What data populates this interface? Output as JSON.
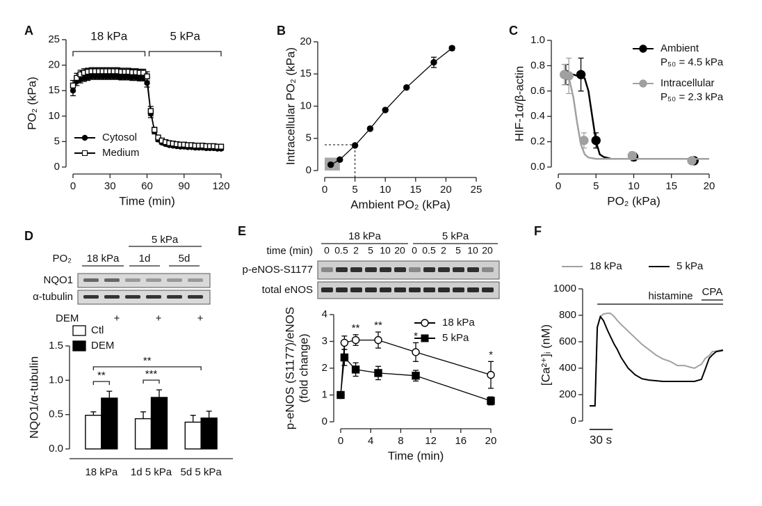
{
  "chart_data": [
    {
      "panel": "A",
      "type": "line",
      "xlabel": "Time (min)",
      "ylabel": "PO₂ (kPa)",
      "xlim": [
        0,
        120
      ],
      "xticks": [
        0,
        30,
        60,
        90,
        120
      ],
      "ylim": [
        0,
        25
      ],
      "yticks": [
        0,
        5,
        10,
        15,
        20,
        25
      ],
      "phases": [
        {
          "label": "18 kPa",
          "x": [
            0,
            60
          ]
        },
        {
          "label": "5 kPa",
          "x": [
            60,
            120
          ]
        }
      ],
      "legend": "lower left",
      "x": [
        0,
        3,
        6,
        9,
        12,
        15,
        18,
        21,
        24,
        27,
        30,
        33,
        36,
        39,
        42,
        45,
        48,
        51,
        54,
        57,
        60,
        63,
        66,
        69,
        72,
        75,
        78,
        81,
        84,
        87,
        90,
        93,
        96,
        99,
        102,
        105,
        108,
        111,
        114,
        117,
        120
      ],
      "series": [
        {
          "name": "Cytosol",
          "color": "#000000",
          "marker": "circle",
          "filled": true,
          "values": [
            15,
            16.8,
            17.2,
            17.5,
            17.6,
            17.8,
            17.8,
            17.8,
            17.8,
            17.8,
            17.8,
            17.8,
            17.8,
            17.7,
            17.7,
            17.7,
            17.6,
            17.6,
            17.5,
            17.5,
            16.5,
            10.5,
            7,
            5.4,
            4.8,
            4.5,
            4.3,
            4.2,
            4.1,
            4,
            4,
            3.9,
            3.9,
            3.8,
            3.8,
            3.8,
            3.7,
            3.7,
            3.7,
            3.6,
            3.6
          ],
          "errors": [
            1,
            0.8,
            0.7,
            0.7,
            0.6,
            0.6,
            0.6,
            0.6,
            0.6,
            0.6,
            0.6,
            0.6,
            0.6,
            0.6,
            0.6,
            0.6,
            0.6,
            0.6,
            0.6,
            0.6,
            0.8,
            0.8,
            0.5,
            0.4,
            0.3,
            0.3,
            0.3,
            0.3,
            0.3,
            0.3,
            0.3,
            0.3,
            0.3,
            0.3,
            0.3,
            0.3,
            0.3,
            0.3,
            0.3,
            0.3,
            0.3
          ]
        },
        {
          "name": "Medium",
          "color": "#000000",
          "marker": "square",
          "filled": false,
          "values": [
            16,
            17.5,
            18.2,
            18.5,
            18.7,
            18.8,
            18.8,
            18.8,
            18.8,
            18.8,
            18.8,
            18.8,
            18.8,
            18.7,
            18.7,
            18.7,
            18.6,
            18.6,
            18.5,
            18.5,
            17.8,
            11,
            7.3,
            5.8,
            5.2,
            4.9,
            4.7,
            4.6,
            4.5,
            4.4,
            4.4,
            4.3,
            4.3,
            4.2,
            4.2,
            4.2,
            4.1,
            4.1,
            4.1,
            4,
            4
          ],
          "errors": [
            1,
            0.9,
            0.8,
            0.8,
            0.7,
            0.7,
            0.7,
            0.7,
            0.7,
            0.7,
            0.7,
            0.7,
            0.7,
            0.7,
            0.7,
            0.7,
            0.7,
            0.7,
            0.7,
            0.7,
            0.9,
            0.9,
            0.5,
            0.4,
            0.3,
            0.3,
            0.3,
            0.3,
            0.3,
            0.3,
            0.3,
            0.3,
            0.3,
            0.3,
            0.3,
            0.3,
            0.3,
            0.3,
            0.3,
            0.3,
            0.3
          ]
        }
      ]
    },
    {
      "panel": "B",
      "type": "line",
      "xlabel": "Ambient PO₂ (kPa)",
      "ylabel": "Intracellular PO₂ (kPa)",
      "xlim": [
        0,
        25
      ],
      "xticks": [
        0,
        5,
        10,
        15,
        20,
        25
      ],
      "ylim": [
        0,
        20
      ],
      "yticks": [
        0,
        5,
        10,
        15,
        20
      ],
      "guide": {
        "x": 5,
        "y": 4
      },
      "shade": {
        "x": [
          0,
          2.5
        ],
        "y": [
          0,
          2
        ]
      },
      "x": [
        1,
        2.5,
        5,
        7.5,
        10,
        13.5,
        18,
        21
      ],
      "series": [
        {
          "color": "#000000",
          "marker": "circle",
          "filled": true,
          "values": [
            0.9,
            1.7,
            3.9,
            6.5,
            9.4,
            12.9,
            16.8,
            19
          ],
          "errors": [
            0.2,
            0.2,
            0.2,
            0.2,
            0.2,
            0.2,
            0.8,
            0.3
          ]
        }
      ]
    },
    {
      "panel": "C",
      "type": "scatter",
      "xlabel": "PO₂ (kPa)",
      "ylabel": "HIF-1α/β-actin",
      "xlim": [
        0,
        20
      ],
      "xticks": [
        0,
        5,
        10,
        15,
        20
      ],
      "ylim": [
        0,
        1
      ],
      "yticks": [
        {
          "value": 0,
          "label": "0.0"
        },
        0.2,
        0.4,
        0.6,
        0.8,
        {
          "value": 1,
          "label": "1.0"
        }
      ],
      "legend": "upper right",
      "series": [
        {
          "name": "Ambient",
          "fit_label": "P₅₀ = 4.5 kPa",
          "color": "#000000",
          "marker": "circle",
          "filled": true,
          "x": [
            1,
            3,
            5,
            10,
            18
          ],
          "values": [
            0.73,
            0.73,
            0.21,
            0.08,
            0.05
          ],
          "errors": [
            0.08,
            0.13,
            0.06,
            0.03,
            0.01
          ],
          "fit": {
            "x": [
              0.5,
              2,
              3.5,
              4,
              4.5,
              5,
              5.5,
              6,
              7,
              10,
              20
            ],
            "y": [
              0.73,
              0.73,
              0.7,
              0.6,
              0.4,
              0.2,
              0.1,
              0.08,
              0.065,
              0.065,
              0.065
            ]
          }
        },
        {
          "name": "Intracellular",
          "fit_label": "P₅₀ = 2.3 kPa",
          "color": "#a0a0a0",
          "marker": "circle",
          "filled": true,
          "x": [
            0.8,
            1.4,
            3.4,
            9.8,
            17.7
          ],
          "values": [
            0.73,
            0.72,
            0.21,
            0.09,
            0.05
          ],
          "errors": [
            0.08,
            0.14,
            0.06,
            0.03,
            0.01
          ],
          "fit": {
            "x": [
              0.5,
              1,
              1.5,
              2,
              2.5,
              3,
              3.5,
              4,
              5,
              10,
              20
            ],
            "y": [
              0.73,
              0.72,
              0.68,
              0.55,
              0.35,
              0.18,
              0.1,
              0.075,
              0.065,
              0.065,
              0.065
            ]
          }
        }
      ]
    },
    {
      "panel": "D",
      "type": "bar",
      "ylabel": "NQO1/α-tubulin",
      "ylim": [
        0,
        1.5
      ],
      "yticks": [
        {
          "value": 0,
          "label": "0.0"
        },
        0.5,
        {
          "value": 1,
          "label": "1.0"
        },
        1.5
      ],
      "categories": [
        "18 kPa",
        "1d 5 kPa",
        "5d 5 kPa"
      ],
      "legend": "upper left",
      "series": [
        {
          "name": "Ctl",
          "color": "#ffffff",
          "values": [
            0.49,
            0.44,
            0.39
          ],
          "errors": [
            0.05,
            0.1,
            0.1
          ]
        },
        {
          "name": "DEM",
          "color": "#000000",
          "values": [
            0.74,
            0.75,
            0.45
          ],
          "errors": [
            0.1,
            0.11,
            0.1
          ]
        }
      ],
      "annotations": [
        "**",
        "***",
        "**"
      ],
      "blot": {
        "po2_label": "PO₂",
        "top_label": "5 kPa",
        "lanes": [
          "18 kPa",
          "1d",
          "5d"
        ],
        "rows": [
          "NQO1",
          "α-tubulin"
        ],
        "treatment": "DEM",
        "marks": [
          "+",
          "+",
          "+"
        ]
      }
    },
    {
      "panel": "E",
      "type": "line",
      "xlabel": "Time (min)",
      "ylabel": [
        "p-eNOS (S1177)/eNOS",
        "(fold change)"
      ],
      "xlim": [
        0,
        20
      ],
      "xticks": [
        0,
        4,
        8,
        12,
        16,
        20
      ],
      "ylim": [
        0,
        4
      ],
      "yticks": [
        0,
        1,
        2,
        3,
        4
      ],
      "legend": "upper right",
      "x": [
        0,
        0.5,
        2,
        5,
        10,
        20
      ],
      "series": [
        {
          "name": "18 kPa",
          "color": "#000000",
          "marker": "circle",
          "filled": false,
          "values": [
            1,
            2.95,
            3.05,
            3.05,
            2.6,
            1.75
          ],
          "errors": [
            0.05,
            0.25,
            0.2,
            0.3,
            0.35,
            0.5
          ]
        },
        {
          "name": "5 kPa",
          "color": "#000000",
          "marker": "square",
          "filled": true,
          "values": [
            1,
            2.4,
            1.95,
            1.82,
            1.72,
            0.78
          ],
          "errors": [
            0.05,
            0.3,
            0.25,
            0.25,
            0.2,
            0.15
          ]
        }
      ],
      "annotations": [
        {
          "x": 2,
          "text": "**"
        },
        {
          "x": 5,
          "text": "**"
        },
        {
          "x": 10,
          "text": "*"
        },
        {
          "x": 20,
          "text": "*"
        }
      ],
      "blot": {
        "groups": [
          "18 kPa",
          "5 kPa"
        ],
        "time_label": "time (min)",
        "lanes": [
          "0",
          "0.5",
          "2",
          "5",
          "10",
          "20",
          "0",
          "0.5",
          "2",
          "5",
          "10",
          "20"
        ],
        "rows": [
          "p-eNOS-S1177",
          "total eNOS"
        ]
      }
    },
    {
      "panel": "F",
      "type": "line",
      "ylabel": "[Ca²⁺]ᵢ (nM)",
      "xlim": [
        0,
        173
      ],
      "ylim": [
        0,
        1000
      ],
      "yticks": [
        0,
        200,
        400,
        600,
        800,
        1000
      ],
      "legend": "top",
      "scalebar": {
        "value": 30,
        "label": "30 s"
      },
      "treatments": [
        {
          "label": "histamine",
          "x": [
            10,
            173
          ]
        },
        {
          "label": "CPA",
          "x": [
            145,
            173
          ]
        }
      ],
      "x": [
        0,
        7,
        10,
        14,
        18,
        23,
        27,
        32,
        36,
        41,
        50,
        59,
        68,
        77,
        86,
        95,
        105,
        114,
        123,
        132,
        136,
        145,
        150,
        155,
        159,
        164,
        173
      ],
      "series": [
        {
          "name": "18 kPa",
          "color": "#a0a0a0",
          "values": [
            115,
            115,
            710,
            790,
            810,
            815,
            815,
            790,
            760,
            730,
            680,
            630,
            580,
            540,
            500,
            470,
            450,
            420,
            420,
            405,
            400,
            430,
            475,
            495,
            525,
            530,
            540
          ]
        },
        {
          "name": "5 kPa",
          "color": "#000000",
          "values": [
            115,
            115,
            710,
            790,
            760,
            690,
            640,
            580,
            540,
            480,
            400,
            350,
            320,
            310,
            305,
            300,
            300,
            300,
            300,
            300,
            300,
            315,
            395,
            475,
            500,
            525,
            535
          ]
        }
      ]
    }
  ]
}
